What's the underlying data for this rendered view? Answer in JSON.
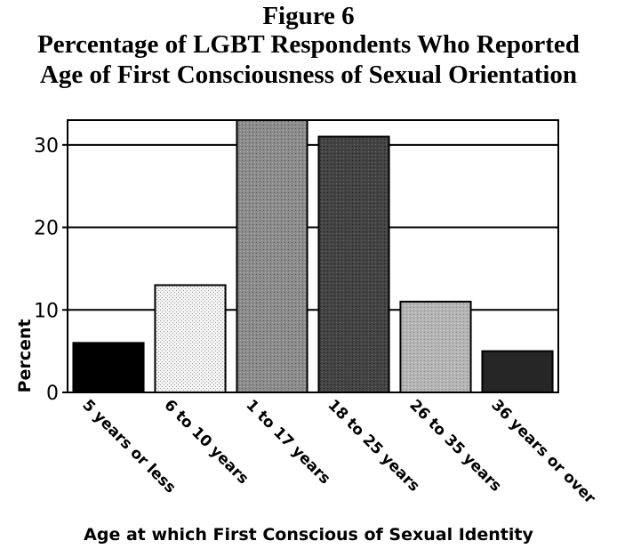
{
  "figure": {
    "label": "Figure 6",
    "title_line1": "Percentage of LGBT Respondents Who Reported",
    "title_line2": "Age of First Consciousness of Sexual Orientation"
  },
  "chart_data": {
    "type": "bar",
    "title": "Percentage of LGBT Respondents Who Reported Age of First Consciousness of Sexual Orientation",
    "xlabel": "Age at which First Conscious of Sexual Identity",
    "ylabel": "Percent",
    "categories": [
      "5 years or less",
      "6 to 10 years",
      "1 to 17 years",
      "18 to 25 years",
      "26 to 35 years",
      "36 years or over"
    ],
    "values": [
      6,
      13,
      33,
      31,
      11,
      5
    ],
    "ylim": [
      0,
      33
    ],
    "yticks": [
      0,
      10,
      20,
      30
    ],
    "grid": "horizontal",
    "legend": "none",
    "bar_colors": [
      "#000000",
      "#ececec",
      "#8c8c8c",
      "#444444",
      "#b4b4b4",
      "#262626"
    ]
  }
}
